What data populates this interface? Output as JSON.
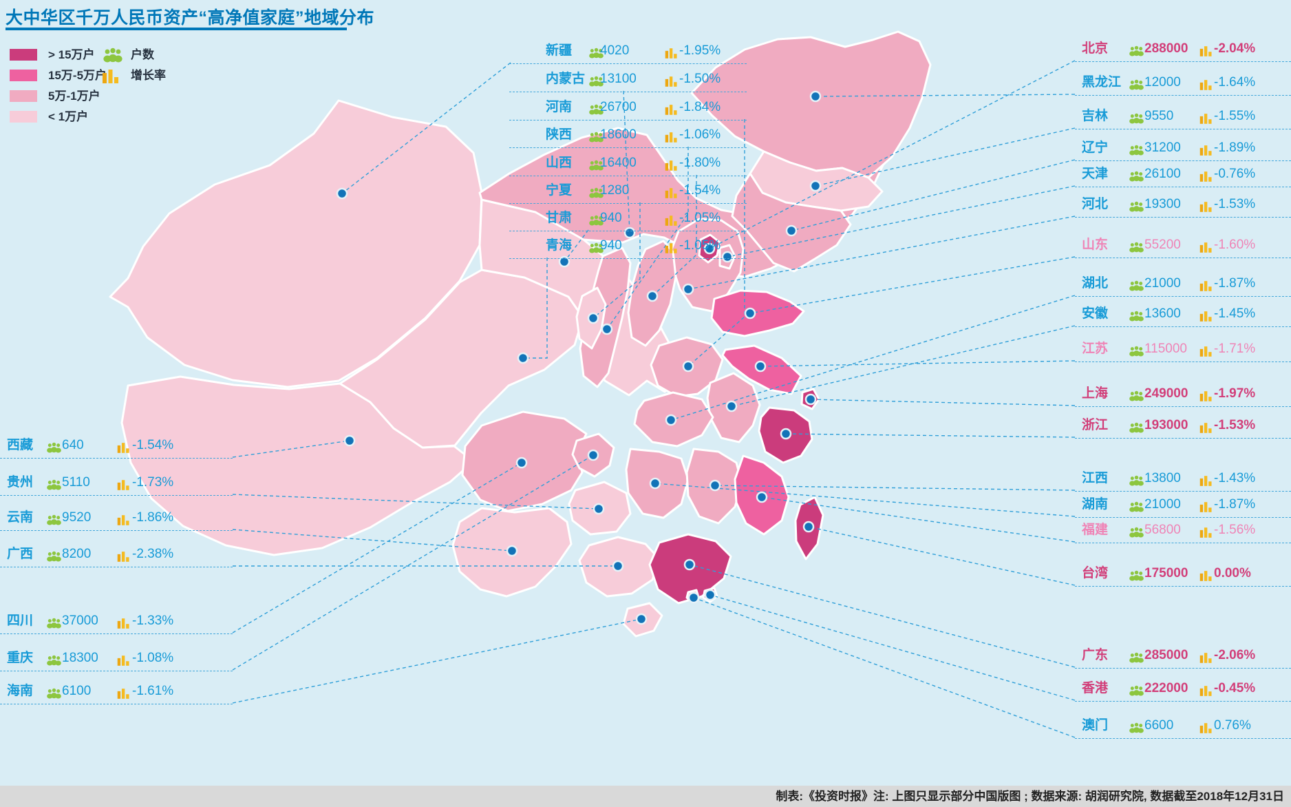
{
  "colors": {
    "background": "#d9edf5",
    "title_blue": "#0077b8",
    "row_blue": "#189bd7",
    "row_magenta": "#d23e79",
    "row_pink": "#ef84b6",
    "people_icon_green": "#8dc63f",
    "bars_icon_yellow": "#f2b11c",
    "leader_line_blue": "#2f9fd8",
    "dot_blue": "#1273b8",
    "footer_gray": "#d9d9d9"
  },
  "chart_data": {
    "type": "heatmap",
    "title": "大中华区千万人民币资产“高净值家庭”地域分布",
    "note": "制表:《投资时报》注: 上图只显示部分中国版图 ; 数据来源: 胡润研究院, 数据截至2018年12月31日",
    "tiers": [
      {
        "label": "> 15万户",
        "color": "#cb3c7c"
      },
      {
        "label": "15万-5万户",
        "color": "#ee61a0"
      },
      {
        "label": "5万-1万户",
        "color": "#f0abc1"
      },
      {
        "label": "< 1万户",
        "color": "#f7ccd9"
      }
    ],
    "metrics": [
      {
        "label": "户数",
        "icon": "people-icon",
        "color": "#8dc63f"
      },
      {
        "label": "增长率",
        "icon": "bar-chart-icon",
        "color": "#f2b11c"
      }
    ],
    "regions": [
      {
        "key": "xizang",
        "name": "西藏",
        "households": 640,
        "growth_pct": -1.54,
        "growth_display": "-1.54%",
        "tier": 4,
        "column": "left"
      },
      {
        "key": "guizhou",
        "name": "贵州",
        "households": 5110,
        "growth_pct": -1.73,
        "growth_display": "-1.73%",
        "tier": 4,
        "column": "left"
      },
      {
        "key": "yunnan",
        "name": "云南",
        "households": 9520,
        "growth_pct": -1.86,
        "growth_display": "-1.86%",
        "tier": 4,
        "column": "left"
      },
      {
        "key": "guangxi",
        "name": "广西",
        "households": 8200,
        "growth_pct": -2.38,
        "growth_display": "-2.38%",
        "tier": 4,
        "column": "left"
      },
      {
        "key": "sichuan",
        "name": "四川",
        "households": 37000,
        "growth_pct": -1.33,
        "growth_display": "-1.33%",
        "tier": 3,
        "column": "left"
      },
      {
        "key": "chongqing",
        "name": "重庆",
        "households": 18300,
        "growth_pct": -1.08,
        "growth_display": "-1.08%",
        "tier": 3,
        "column": "left"
      },
      {
        "key": "hainan",
        "name": "海南",
        "households": 6100,
        "growth_pct": -1.61,
        "growth_display": "-1.61%",
        "tier": 4,
        "column": "left"
      },
      {
        "key": "xinjiang",
        "name": "新疆",
        "households": 4020,
        "growth_pct": -1.95,
        "growth_display": "-1.95%",
        "tier": 4,
        "column": "middle"
      },
      {
        "key": "neimenggu",
        "name": "内蒙古",
        "households": 13100,
        "growth_pct": -1.5,
        "growth_display": "-1.50%",
        "tier": 3,
        "column": "middle"
      },
      {
        "key": "henan",
        "name": "河南",
        "households": 26700,
        "growth_pct": -1.84,
        "growth_display": "-1.84%",
        "tier": 3,
        "column": "middle"
      },
      {
        "key": "shaanxi",
        "name": "陕西",
        "households": 18600,
        "growth_pct": -1.06,
        "growth_display": "-1.06%",
        "tier": 3,
        "column": "middle"
      },
      {
        "key": "shanxi",
        "name": "山西",
        "households": 16400,
        "growth_pct": -1.8,
        "growth_display": "-1.80%",
        "tier": 3,
        "column": "middle"
      },
      {
        "key": "ningxia",
        "name": "宁夏",
        "households": 1280,
        "growth_pct": -1.54,
        "growth_display": "-1.54%",
        "tier": 4,
        "column": "middle"
      },
      {
        "key": "gansu",
        "name": "甘肃",
        "households": 940,
        "growth_pct": -1.05,
        "growth_display": "-1.05%",
        "tier": 4,
        "column": "middle"
      },
      {
        "key": "qinghai",
        "name": "青海",
        "households": 940,
        "growth_pct": -1.05,
        "growth_display": "-1.05%",
        "tier": 4,
        "column": "middle"
      },
      {
        "key": "beijing",
        "name": "北京",
        "households": 288000,
        "growth_pct": -2.04,
        "growth_display": "-2.04%",
        "tier": 1,
        "column": "right"
      },
      {
        "key": "heilongjiang",
        "name": "黑龙江",
        "households": 12000,
        "growth_pct": -1.64,
        "growth_display": "-1.64%",
        "tier": 3,
        "column": "right"
      },
      {
        "key": "jilin",
        "name": "吉林",
        "households": 9550,
        "growth_pct": -1.55,
        "growth_display": "-1.55%",
        "tier": 4,
        "column": "right"
      },
      {
        "key": "liaoning",
        "name": "辽宁",
        "households": 31200,
        "growth_pct": -1.89,
        "growth_display": "-1.89%",
        "tier": 3,
        "column": "right"
      },
      {
        "key": "tianjin",
        "name": "天津",
        "households": 26100,
        "growth_pct": -0.76,
        "growth_display": "-0.76%",
        "tier": 3,
        "column": "right"
      },
      {
        "key": "hebei",
        "name": "河北",
        "households": 19300,
        "growth_pct": -1.53,
        "growth_display": "-1.53%",
        "tier": 3,
        "column": "right"
      },
      {
        "key": "shandong",
        "name": "山东",
        "households": 55200,
        "growth_pct": -1.6,
        "growth_display": "-1.60%",
        "tier": 2,
        "column": "right"
      },
      {
        "key": "hubei",
        "name": "湖北",
        "households": 21000,
        "growth_pct": -1.87,
        "growth_display": "-1.87%",
        "tier": 3,
        "column": "right"
      },
      {
        "key": "anhui",
        "name": "安徽",
        "households": 13600,
        "growth_pct": -1.45,
        "growth_display": "-1.45%",
        "tier": 3,
        "column": "right"
      },
      {
        "key": "jiangsu",
        "name": "江苏",
        "households": 115000,
        "growth_pct": -1.71,
        "growth_display": "-1.71%",
        "tier": 2,
        "column": "right"
      },
      {
        "key": "shanghai",
        "name": "上海",
        "households": 249000,
        "growth_pct": -1.97,
        "growth_display": "-1.97%",
        "tier": 1,
        "column": "right"
      },
      {
        "key": "zhejiang",
        "name": "浙江",
        "households": 193000,
        "growth_pct": -1.53,
        "growth_display": "-1.53%",
        "tier": 1,
        "column": "right"
      },
      {
        "key": "jiangxi",
        "name": "江西",
        "households": 13800,
        "growth_pct": -1.43,
        "growth_display": "-1.43%",
        "tier": 3,
        "column": "right"
      },
      {
        "key": "hunan",
        "name": "湖南",
        "households": 21000,
        "growth_pct": -1.87,
        "growth_display": "-1.87%",
        "tier": 3,
        "column": "right"
      },
      {
        "key": "fujian",
        "name": "福建",
        "households": 56800,
        "growth_pct": -1.56,
        "growth_display": "-1.56%",
        "tier": 2,
        "column": "right"
      },
      {
        "key": "taiwan",
        "name": "台湾",
        "households": 175000,
        "growth_pct": 0.0,
        "growth_display": "0.00%",
        "tier": 1,
        "column": "right"
      },
      {
        "key": "guangdong",
        "name": "广东",
        "households": 285000,
        "growth_pct": -2.06,
        "growth_display": "-2.06%",
        "tier": 1,
        "column": "right"
      },
      {
        "key": "xianggang",
        "name": "香港",
        "households": 222000,
        "growth_pct": -0.45,
        "growth_display": "-0.45%",
        "tier": 1,
        "column": "right"
      },
      {
        "key": "aomen",
        "name": "澳门",
        "households": 6600,
        "growth_pct": 0.76,
        "growth_display": "0.76%",
        "tier": 4,
        "column": "right"
      }
    ]
  }
}
